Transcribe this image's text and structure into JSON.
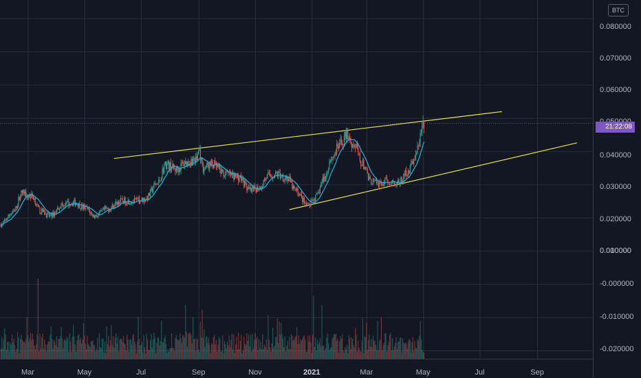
{
  "currency_badge": "BTC",
  "countdown": "21:22:08",
  "colors": {
    "background": "#131722",
    "grid": "#2a2e39",
    "up": "#26a69a",
    "down": "#ef5350",
    "ma": "#2fa7d8",
    "trendline": "#e6e24a",
    "price_tag": "#7e57c2"
  },
  "chart_data": {
    "type": "candlestick",
    "y_ticks": [
      "0.080000",
      "0.070000",
      "0.060000",
      "0.050000",
      "0.040000",
      "0.030000",
      "0.020000",
      "0.010000",
      "0.000000",
      "-0.000000",
      "-0.010000",
      "-0.020000"
    ],
    "ylim": [
      -0.0225,
      0.0855
    ],
    "x_ticks": [
      "Mar",
      "May",
      "Jul",
      "Sep",
      "Nov",
      "2021",
      "Mar",
      "May",
      "Jul",
      "Sep"
    ],
    "x_tick_bold": "2021",
    "xlim": [
      "2020-01-31",
      "2021-10-31"
    ],
    "last_price": 0.0485,
    "price_anchors": [
      [
        "2020-02-01",
        0.018
      ],
      [
        "2020-02-14",
        0.0215
      ],
      [
        "2020-02-24",
        0.0275
      ],
      [
        "2020-03-05",
        0.0265
      ],
      [
        "2020-03-15",
        0.022
      ],
      [
        "2020-03-25",
        0.0205
      ],
      [
        "2020-04-08",
        0.024
      ],
      [
        "2020-04-20",
        0.0245
      ],
      [
        "2020-05-01",
        0.023
      ],
      [
        "2020-05-12",
        0.0205
      ],
      [
        "2020-05-25",
        0.0225
      ],
      [
        "2020-06-10",
        0.025
      ],
      [
        "2020-06-25",
        0.025
      ],
      [
        "2020-07-05",
        0.0255
      ],
      [
        "2020-07-18",
        0.03
      ],
      [
        "2020-07-28",
        0.036
      ],
      [
        "2020-08-08",
        0.0345
      ],
      [
        "2020-08-18",
        0.0365
      ],
      [
        "2020-08-30",
        0.0375
      ],
      [
        "2020-09-01",
        0.0405
      ],
      [
        "2020-09-06",
        0.035
      ],
      [
        "2020-09-15",
        0.036
      ],
      [
        "2020-10-01",
        0.033
      ],
      [
        "2020-10-15",
        0.032
      ],
      [
        "2020-10-27",
        0.028
      ],
      [
        "2020-11-05",
        0.029
      ],
      [
        "2020-11-15",
        0.0325
      ],
      [
        "2020-11-25",
        0.033
      ],
      [
        "2020-12-05",
        0.032
      ],
      [
        "2020-12-15",
        0.028
      ],
      [
        "2020-12-28",
        0.0235
      ],
      [
        "2021-01-05",
        0.026
      ],
      [
        "2021-01-15",
        0.032
      ],
      [
        "2021-01-22",
        0.038
      ],
      [
        "2021-02-01",
        0.042
      ],
      [
        "2021-02-08",
        0.045
      ],
      [
        "2021-02-15",
        0.042
      ],
      [
        "2021-02-25",
        0.036
      ],
      [
        "2021-03-05",
        0.031
      ],
      [
        "2021-03-15",
        0.03
      ],
      [
        "2021-03-25",
        0.031
      ],
      [
        "2021-04-05",
        0.0305
      ],
      [
        "2021-04-15",
        0.034
      ],
      [
        "2021-04-22",
        0.038
      ],
      [
        "2021-04-30",
        0.046
      ]
    ],
    "volume_spikes": [
      [
        "2020-03-12",
        0.9
      ],
      [
        "2020-08-18",
        0.6
      ],
      [
        "2021-01-03",
        0.7
      ],
      [
        "2021-01-12",
        0.6
      ],
      [
        "2020-09-05",
        0.55
      ],
      [
        "2020-11-25",
        0.45
      ],
      [
        "2021-02-25",
        0.45
      ],
      [
        "2021-04-28",
        0.42
      ]
    ],
    "trendlines": [
      {
        "from": [
          "2020-06-02",
          0.0378
        ],
        "to": [
          "2021-07-25",
          0.0519
        ]
      },
      {
        "from": [
          "2020-12-08",
          0.0224
        ],
        "to": [
          "2021-10-14",
          0.0425
        ]
      }
    ]
  }
}
